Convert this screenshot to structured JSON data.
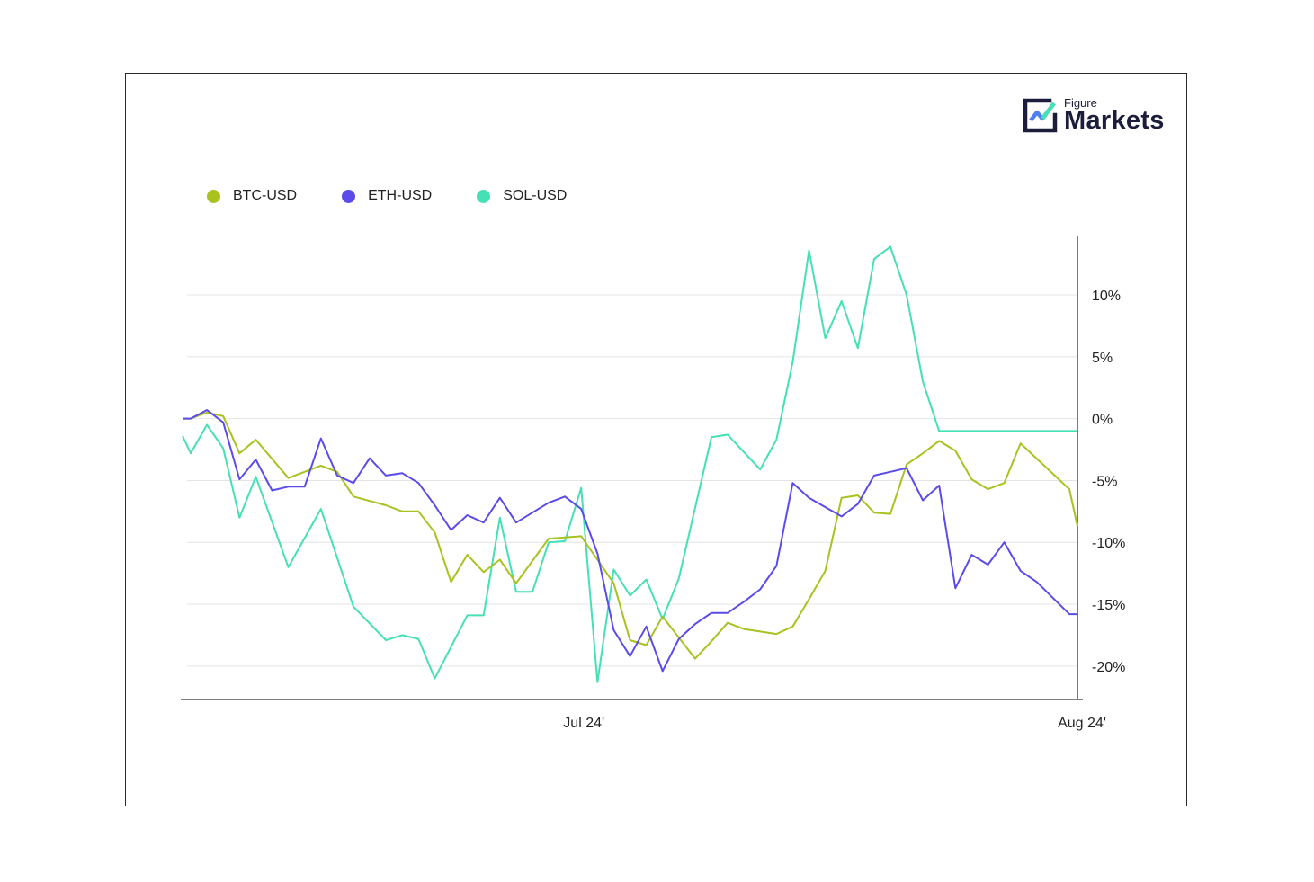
{
  "logo": {
    "small_text": "Figure",
    "big_text": "Markets"
  },
  "colors": {
    "btc": "#a9c21f",
    "eth": "#5a4bea",
    "sol": "#45e0b4",
    "grid": "#e4e4e4",
    "axis": "#333333"
  },
  "chart_data": {
    "type": "line",
    "title": "",
    "xlabel": "",
    "ylabel": "",
    "ylim": [
      -22.7,
      14.8
    ],
    "y_ticks": [
      10,
      5,
      0,
      -5,
      -10,
      -15,
      -20
    ],
    "y_tick_labels": [
      "10%",
      "5%",
      "0%",
      "-5%",
      "-10%",
      "-15%",
      "-20%"
    ],
    "x_range": [
      0,
      55
    ],
    "x_ticks": [
      24,
      55
    ],
    "x_tick_labels": [
      "Jul 24'",
      "Aug 24'"
    ],
    "grid": true,
    "legend_position": "top-left",
    "series": [
      {
        "name": "BTC-USD",
        "color": "#a9c21f",
        "x": [
          0,
          0.5,
          1.5,
          2.5,
          3.5,
          4.5,
          6.5,
          7.5,
          8.5,
          9.5,
          10.5,
          12.5,
          13.5,
          14.5,
          15.5,
          16.5,
          17.5,
          18.5,
          19.5,
          20.5,
          21.5,
          22.5,
          24.5,
          26.5,
          27.5,
          28.5,
          29.5,
          31.5,
          32.5,
          33.5,
          34.5,
          36.5,
          37.5,
          38.5,
          39.5,
          40.5,
          41.5,
          42.5,
          43.5,
          44.5,
          45.5,
          46.5,
          47.5,
          48.5,
          49.5,
          50.5,
          51.5,
          54.5,
          55
        ],
        "values": [
          0,
          0,
          0.5,
          0.2,
          -2.8,
          -1.7,
          -4.8,
          -4.3,
          -3.8,
          -4.3,
          -6.3,
          -7.0,
          -7.5,
          -7.5,
          -9.2,
          -13.2,
          -11.0,
          -12.4,
          -11.4,
          -13.3,
          -11.5,
          -9.7,
          -9.5,
          -13.3,
          -17.9,
          -18.3,
          -16.0,
          -19.4,
          -18.0,
          -16.5,
          -17.0,
          -17.4,
          -16.8,
          -14.6,
          -12.3,
          -6.4,
          -6.2,
          -7.6,
          -7.7,
          -3.7,
          -2.8,
          -1.8,
          -2.6,
          -4.9,
          -5.7,
          -5.2,
          -2.0,
          -5.7,
          -8.7
        ]
      },
      {
        "name": "ETH-USD",
        "color": "#5a4bea",
        "x": [
          0,
          0.5,
          1.5,
          2.5,
          3.5,
          4.5,
          5.5,
          6.5,
          7.5,
          8.5,
          9.5,
          10.5,
          11.5,
          12.5,
          13.5,
          14.5,
          15.5,
          16.5,
          17.5,
          18.5,
          19.5,
          20.5,
          22.5,
          23.5,
          24.5,
          25.5,
          26.5,
          27.5,
          28.5,
          29.5,
          30.5,
          31.5,
          32.5,
          33.5,
          34.5,
          35.5,
          36.5,
          37.5,
          38.5,
          40.5,
          41.5,
          42.5,
          43.5,
          44.5,
          45.5,
          46.5,
          47.5,
          48.5,
          49.5,
          50.5,
          51.5,
          52.5,
          54.5,
          55
        ],
        "values": [
          0,
          0,
          0.7,
          -0.3,
          -4.9,
          -3.3,
          -5.8,
          -5.5,
          -5.5,
          -1.6,
          -4.6,
          -5.2,
          -3.2,
          -4.6,
          -4.4,
          -5.2,
          -7.0,
          -9.0,
          -7.8,
          -8.4,
          -6.4,
          -8.4,
          -6.8,
          -6.3,
          -7.3,
          -10.9,
          -17.1,
          -19.2,
          -16.8,
          -20.4,
          -17.8,
          -16.6,
          -15.7,
          -15.7,
          -14.8,
          -13.8,
          -11.9,
          -5.2,
          -6.4,
          -7.9,
          -6.9,
          -4.6,
          -4.3,
          -4.0,
          -6.6,
          -5.4,
          -13.7,
          -11.0,
          -11.8,
          -10.0,
          -12.3,
          -13.2,
          -15.8,
          -15.8
        ]
      },
      {
        "name": "SOL-USD",
        "color": "#45e0b4",
        "x": [
          0,
          0.5,
          1.5,
          2.5,
          3.5,
          4.5,
          6.5,
          8.5,
          10.5,
          12.5,
          13.5,
          14.5,
          15.5,
          17.5,
          18.5,
          19.5,
          20.5,
          21.5,
          22.5,
          23.5,
          24.5,
          25.5,
          26.5,
          27.5,
          28.5,
          29.5,
          30.5,
          32.5,
          33.5,
          35.5,
          36.5,
          37.5,
          38.5,
          39.5,
          40.5,
          41.5,
          42.5,
          43.5,
          44.5,
          45.5,
          46.5,
          47.5,
          48.5,
          49.5,
          50.5,
          51.5,
          52.5,
          54.5,
          55
        ],
        "values": [
          -1.4,
          -2.8,
          -0.5,
          -2.4,
          -8.0,
          -4.7,
          -12.0,
          -7.3,
          -15.2,
          -17.9,
          -17.5,
          -17.8,
          -21.0,
          -15.9,
          -15.9,
          -8.0,
          -14.0,
          -14.0,
          -10.0,
          -9.9,
          -5.6,
          -21.3,
          -12.2,
          -14.3,
          -13.0,
          -16.2,
          -12.9,
          -1.5,
          -1.3,
          -4.1,
          -1.7,
          4.6,
          13.6,
          6.5,
          9.5,
          5.7,
          12.9,
          13.9,
          10.0,
          3.0,
          -1.0,
          -1.0,
          -1.0,
          -1.0,
          -1.0,
          -1.0,
          -1.0,
          -1.0,
          -1.0
        ]
      }
    ]
  }
}
